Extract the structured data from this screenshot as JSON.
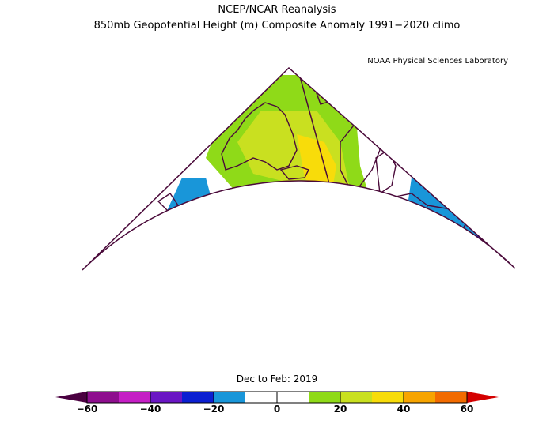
{
  "header": {
    "title_line1": "NCEP/NCAR Reanalysis",
    "title_line2": "850mb Geopotential Height (m) Composite Anomaly 1991−2020 climo",
    "credit": "NOAA Physical Sciences Laboratory"
  },
  "season_label": "Dec to Feb: 2019",
  "colorbar": {
    "tick_labels": [
      "−60",
      "−40",
      "−20",
      "0",
      "20",
      "40",
      "60"
    ],
    "colors": [
      "#8e0e8e",
      "#c51ec5",
      "#6a16c4",
      "#0b1fd1",
      "#1996d9",
      "#ffffff",
      "#ffffff",
      "#8fda18",
      "#c9e020",
      "#f8dc0a",
      "#f7a400",
      "#f26b00"
    ],
    "left_cap_color": "#4a0040",
    "right_cap_color": "#d40000"
  },
  "map_colors": {
    "blue_light": "#1996d9",
    "blue_dark": "#0b1fd1",
    "green": "#8fda18",
    "lime": "#c9e020",
    "yellow": "#f8dc0a",
    "coast": "#4a0a3a"
  }
}
